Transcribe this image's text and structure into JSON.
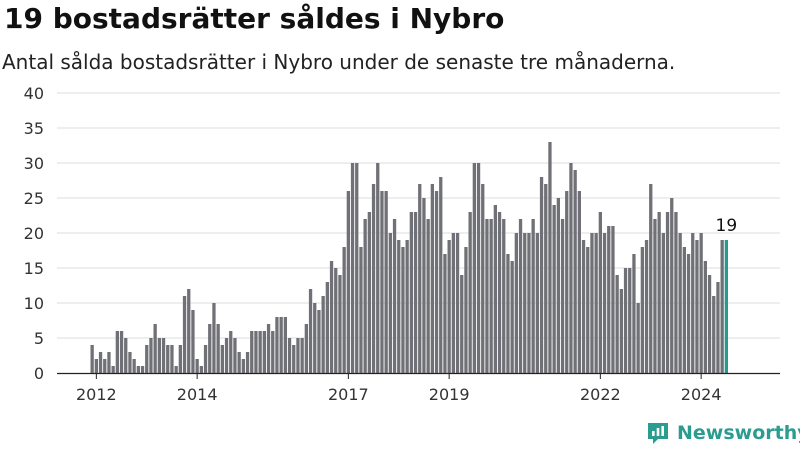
{
  "title": "19 bostadsrätter såldes i Nybro",
  "subtitle": "Antal sålda bostadsrätter i Nybro under de senaste tre månaderna.",
  "brand": "Newsworthy",
  "colors": {
    "bar": "#707077",
    "highlight": "#269a91",
    "grid": "#dddddd",
    "brand": "#2a9d90"
  },
  "chart_data": {
    "type": "bar",
    "x_start": "2011-12",
    "x_end": "2024-09",
    "values": [
      4,
      2,
      3,
      2,
      3,
      1,
      6,
      6,
      5,
      3,
      2,
      1,
      1,
      4,
      5,
      7,
      5,
      5,
      4,
      4,
      1,
      4,
      11,
      12,
      9,
      2,
      1,
      4,
      7,
      10,
      7,
      4,
      5,
      6,
      5,
      3,
      2,
      3,
      6,
      6,
      6,
      6,
      7,
      6,
      8,
      8,
      8,
      5,
      4,
      5,
      5,
      7,
      12,
      10,
      9,
      11,
      13,
      16,
      15,
      14,
      18,
      26,
      30,
      30,
      18,
      22,
      23,
      27,
      30,
      26,
      26,
      20,
      22,
      19,
      18,
      19,
      23,
      23,
      27,
      25,
      22,
      27,
      26,
      28,
      17,
      19,
      20,
      20,
      14,
      18,
      23,
      30,
      30,
      27,
      22,
      22,
      24,
      23,
      22,
      17,
      16,
      20,
      22,
      20,
      20,
      22,
      20,
      28,
      27,
      33,
      24,
      25,
      22,
      26,
      30,
      29,
      26,
      19,
      18,
      20,
      20,
      23,
      20,
      21,
      21,
      14,
      12,
      15,
      15,
      17,
      10,
      18,
      19,
      27,
      22,
      23,
      20,
      23,
      25,
      23,
      20,
      18,
      17,
      20,
      19,
      20,
      16,
      14,
      11,
      13,
      19,
      19
    ],
    "highlight_label": "19",
    "x_ticks": [
      "2012",
      "2014",
      "2017",
      "2019",
      "2022",
      "2024"
    ],
    "y_ticks": [
      "0",
      "5",
      "10",
      "15",
      "20",
      "25",
      "30",
      "35",
      "40"
    ],
    "ylim": [
      0,
      40
    ]
  }
}
